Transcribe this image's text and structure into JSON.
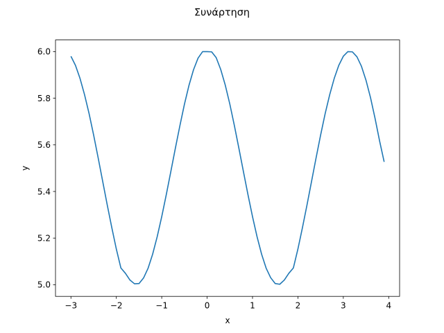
{
  "chart_data": {
    "type": "line",
    "title": "Συνάρτηση",
    "xlabel": "x",
    "ylabel": "y",
    "xlim": [
      -3.34,
      4.24
    ],
    "ylim": [
      4.95,
      6.05
    ],
    "grid": false,
    "x_ticks": [
      {
        "value": -3,
        "label": "−3"
      },
      {
        "value": -2,
        "label": "−2"
      },
      {
        "value": -1,
        "label": "−1"
      },
      {
        "value": 0,
        "label": "0"
      },
      {
        "value": 1,
        "label": "1"
      },
      {
        "value": 2,
        "label": "2"
      },
      {
        "value": 3,
        "label": "3"
      },
      {
        "value": 4,
        "label": "4"
      }
    ],
    "y_ticks": [
      {
        "value": 5.0,
        "label": "5.0"
      },
      {
        "value": 5.2,
        "label": "5.2"
      },
      {
        "value": 5.4,
        "label": "5.4"
      },
      {
        "value": 5.6,
        "label": "5.6"
      },
      {
        "value": 5.8,
        "label": "5.8"
      },
      {
        "value": 6.0,
        "label": "6.0"
      }
    ],
    "series": [
      {
        "color": "#1f77b4",
        "x": [
          -3.0,
          -2.9,
          -2.8,
          -2.7,
          -2.6,
          -2.5,
          -2.4,
          -2.3,
          -2.2,
          -2.1,
          -2.0,
          -1.9,
          -1.8,
          -1.7,
          -1.6,
          -1.5,
          -1.4,
          -1.3,
          -1.2,
          -1.1,
          -1.0,
          -0.9,
          -0.8,
          -0.7,
          -0.6,
          -0.5,
          -0.4,
          -0.3,
          -0.2,
          -0.1,
          0.0,
          0.1,
          0.2,
          0.3,
          0.4,
          0.5,
          0.6,
          0.7,
          0.8,
          0.9,
          1.0,
          1.1,
          1.2,
          1.3,
          1.4,
          1.5,
          1.6,
          1.7,
          1.8,
          1.9,
          2.0,
          2.1,
          2.2,
          2.3,
          2.4,
          2.5,
          2.6,
          2.7,
          2.8,
          2.9,
          3.0,
          3.1,
          3.2,
          3.3,
          3.4,
          3.5,
          3.6,
          3.7,
          3.8,
          3.9
        ],
        "y": [
          5.98,
          5.941,
          5.885,
          5.815,
          5.734,
          5.642,
          5.544,
          5.443,
          5.342,
          5.245,
          5.153,
          5.072,
          5.049,
          5.02,
          5.004,
          5.005,
          5.029,
          5.071,
          5.131,
          5.206,
          5.292,
          5.386,
          5.485,
          5.585,
          5.682,
          5.774,
          5.855,
          5.922,
          5.972,
          6.0,
          6.0,
          5.999,
          5.974,
          5.923,
          5.856,
          5.775,
          5.683,
          5.585,
          5.485,
          5.386,
          5.292,
          5.206,
          5.131,
          5.071,
          5.03,
          5.005,
          5.002,
          5.02,
          5.049,
          5.072,
          5.153,
          5.245,
          5.342,
          5.443,
          5.544,
          5.642,
          5.734,
          5.815,
          5.885,
          5.941,
          5.98,
          6.0,
          5.999,
          5.978,
          5.937,
          5.877,
          5.802,
          5.713,
          5.616,
          5.527
        ]
      }
    ]
  }
}
